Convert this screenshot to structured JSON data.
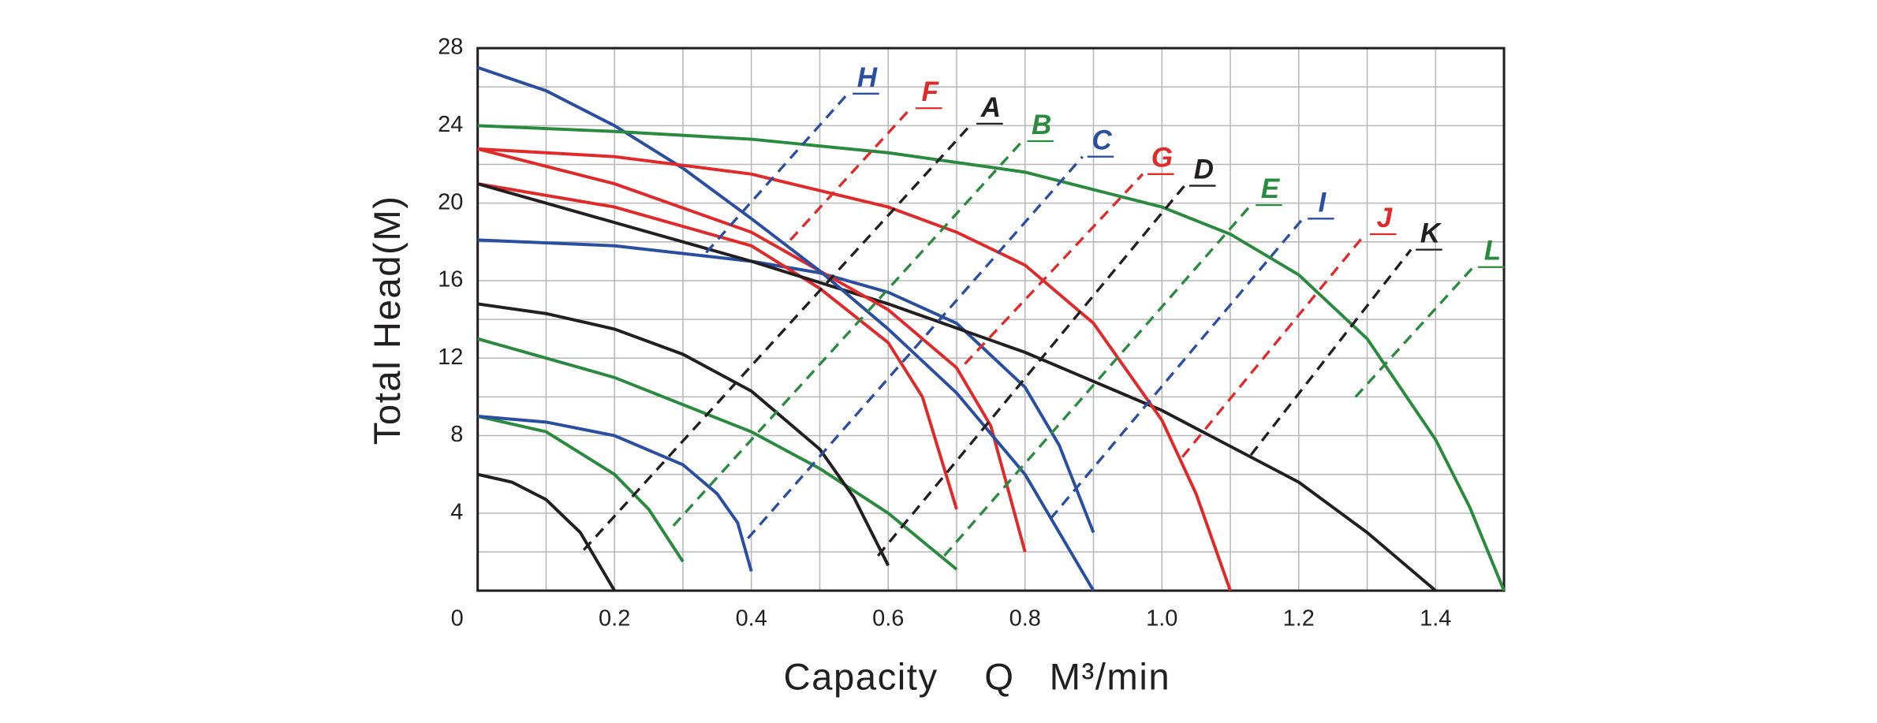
{
  "chart_data": {
    "type": "line",
    "x_label": "Capacity    Q   M³/min",
    "y_label": "Total Head(M)",
    "xlim": [
      0,
      1.5
    ],
    "ylim": [
      0,
      28
    ],
    "xticks": [
      0,
      0.2,
      0.4,
      0.6,
      0.8,
      {
        "value": 1,
        "label": "1.0"
      },
      1.2,
      1.4
    ],
    "yticks": [
      4,
      8,
      12,
      16,
      20,
      24,
      28
    ],
    "xgrid": [
      0.1,
      0.3,
      0.5,
      0.7,
      0.9,
      1.1,
      1.3,
      1.5
    ],
    "ygrid": [
      2,
      6,
      10,
      14,
      18,
      22,
      26
    ],
    "grid": true,
    "series": [
      {
        "color": "#231f20",
        "x": [
          0,
          0.05,
          0.1,
          0.15,
          0.2
        ],
        "values": [
          6,
          5.6,
          4.7,
          3.0,
          0
        ]
      },
      {
        "color": "#2a8a3e",
        "x": [
          0,
          0.1,
          0.2,
          0.25,
          0.3
        ],
        "values": [
          9,
          8.2,
          6,
          4.2,
          1.5
        ]
      },
      {
        "color": "#2a4fa0",
        "x": [
          0,
          0.1,
          0.2,
          0.3,
          0.35,
          0.38,
          0.4
        ],
        "values": [
          9,
          8.7,
          8,
          6.5,
          5,
          3.5,
          1
        ]
      },
      {
        "color": "#2a8a3e",
        "x": [
          0,
          0.2,
          0.4,
          0.5,
          0.6,
          0.7
        ],
        "values": [
          13,
          11,
          8.2,
          6.3,
          4,
          1.1
        ]
      },
      {
        "color": "#231f20",
        "x": [
          0,
          0.1,
          0.2,
          0.3,
          0.4,
          0.5,
          0.55,
          0.6
        ],
        "values": [
          14.8,
          14.3,
          13.5,
          12.2,
          10.3,
          7.3,
          4.8,
          1.3
        ]
      },
      {
        "color": "#2a4fa0",
        "x": [
          0,
          0.2,
          0.4,
          0.5,
          0.6,
          0.7,
          0.8,
          0.85,
          0.9
        ],
        "values": [
          18.1,
          17.8,
          17,
          16.4,
          15.4,
          13.8,
          10.5,
          7.5,
          3
        ]
      },
      {
        "color": "#e02a2a",
        "x": [
          0,
          0.2,
          0.4,
          0.5,
          0.6,
          0.65,
          0.7
        ],
        "values": [
          21,
          19.8,
          17.8,
          15.6,
          12.8,
          10,
          4.2
        ]
      },
      {
        "color": "#231f20",
        "x": [
          0,
          0.2,
          0.4,
          0.6,
          0.8,
          1.0,
          1.2,
          1.3,
          1.4
        ],
        "values": [
          21,
          19,
          17,
          14.8,
          12.3,
          9.3,
          5.6,
          3,
          0
        ]
      },
      {
        "color": "#e02a2a",
        "x": [
          0,
          0.2,
          0.4,
          0.5,
          0.6,
          0.7,
          0.75,
          0.8
        ],
        "values": [
          22.8,
          21,
          18.5,
          16.5,
          14.5,
          11.5,
          8.5,
          2
        ]
      },
      {
        "color": "#2a4fa0",
        "x": [
          0,
          0.1,
          0.2,
          0.3,
          0.4,
          0.5,
          0.6,
          0.7,
          0.8,
          0.9
        ],
        "values": [
          27,
          25.8,
          24,
          21.8,
          19.2,
          16.5,
          13.5,
          10.2,
          6,
          0
        ]
      },
      {
        "color": "#e02a2a",
        "x": [
          0,
          0.2,
          0.4,
          0.6,
          0.7,
          0.8,
          0.9,
          1.0,
          1.05,
          1.1
        ],
        "values": [
          22.8,
          22.4,
          21.5,
          19.8,
          18.5,
          16.8,
          13.8,
          8.8,
          5,
          0
        ]
      },
      {
        "color": "#2a8a3e",
        "x": [
          0,
          0.2,
          0.4,
          0.6,
          0.8,
          1.0,
          1.1,
          1.2,
          1.3,
          1.4,
          1.45,
          1.5
        ],
        "values": [
          24,
          23.7,
          23.3,
          22.6,
          21.6,
          19.8,
          18.4,
          16.3,
          13,
          7.8,
          4.3,
          0
        ]
      },
      {
        "name": "H",
        "dashed": true,
        "color": "#2a4fa0",
        "x": [
          0.334,
          0.541
        ],
        "values": [
          17.45,
          25.65
        ]
      },
      {
        "name": "F",
        "dashed": true,
        "color": "#e02a2a",
        "x": [
          0.457,
          0.633
        ],
        "values": [
          18.1,
          24.9
        ]
      },
      {
        "name": "A",
        "dashed": true,
        "color": "#231f20",
        "x": [
          0.155,
          0.722
        ],
        "values": [
          2.1,
          24.1
        ]
      },
      {
        "name": "B",
        "dashed": true,
        "color": "#2a8a3e",
        "x": [
          0.286,
          0.796
        ],
        "values": [
          3.35,
          23.2
        ]
      },
      {
        "name": "C",
        "dashed": true,
        "color": "#2a4fa0",
        "x": [
          0.395,
          0.884
        ],
        "values": [
          2.7,
          22.4
        ]
      },
      {
        "name": "G",
        "dashed": true,
        "color": "#e02a2a",
        "x": [
          0.712,
          0.972
        ],
        "values": [
          11.7,
          21.5
        ]
      },
      {
        "name": "D",
        "dashed": true,
        "color": "#231f20",
        "x": [
          0.585,
          1.033
        ],
        "values": [
          1.8,
          20.9
        ]
      },
      {
        "name": "E",
        "dashed": true,
        "color": "#2a8a3e",
        "x": [
          0.682,
          1.13
        ],
        "values": [
          1.8,
          19.9
        ]
      },
      {
        "name": "I",
        "dashed": true,
        "color": "#2a4fa0",
        "x": [
          0.837,
          1.206
        ],
        "values": [
          3.7,
          19.2
        ]
      },
      {
        "name": "J",
        "dashed": true,
        "color": "#e02a2a",
        "x": [
          1.03,
          1.297
        ],
        "values": [
          6.9,
          18.4
        ]
      },
      {
        "name": "K",
        "dashed": true,
        "color": "#231f20",
        "x": [
          1.13,
          1.364
        ],
        "values": [
          7.0,
          17.6
        ]
      },
      {
        "name": "L",
        "dashed": true,
        "color": "#2a8a3e",
        "x": [
          1.283,
          1.455
        ],
        "values": [
          10,
          16.7
        ]
      }
    ]
  }
}
